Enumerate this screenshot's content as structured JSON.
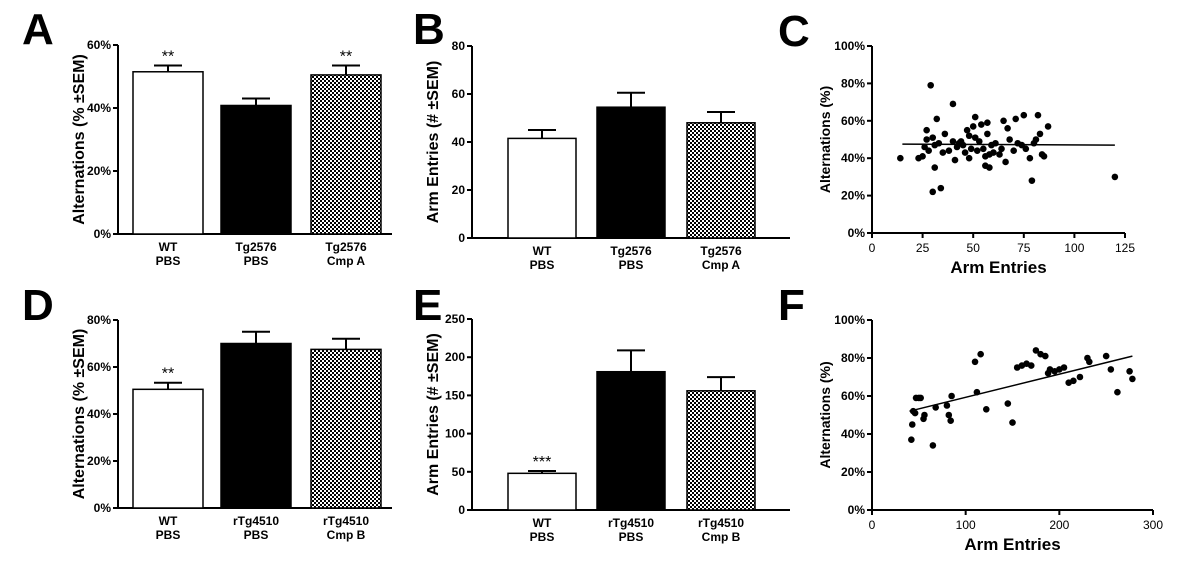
{
  "colors": {
    "axis": "#000000",
    "bar_white": "#ffffff",
    "bar_black": "#000000",
    "hatch_dark": "#000000"
  },
  "chart_data": [
    {
      "panel": "A",
      "type": "bar",
      "ylabel": "Alternations (% ±SEM)",
      "ylim": [
        0,
        60
      ],
      "yticks": [
        0,
        20,
        40,
        60
      ],
      "ytick_labels": [
        "0%",
        "20%",
        "40%",
        "60%"
      ],
      "categories": [
        [
          "WT",
          "PBS"
        ],
        [
          "Tg2576",
          "PBS"
        ],
        [
          "Tg2576",
          "Cmp A"
        ]
      ],
      "values": [
        51.5,
        40.8,
        50.5
      ],
      "errors": [
        2.0,
        2.2,
        3.0
      ],
      "fills": [
        "white",
        "black",
        "hatch"
      ],
      "significance": [
        "**",
        "",
        "**"
      ]
    },
    {
      "panel": "B",
      "type": "bar",
      "ylabel": "Arm Entries (# ±SEM)",
      "ylim": [
        0,
        80
      ],
      "yticks": [
        0,
        20,
        40,
        60,
        80
      ],
      "ytick_labels": [
        "0",
        "20",
        "40",
        "60",
        "80"
      ],
      "categories": [
        [
          "WT",
          "PBS"
        ],
        [
          "Tg2576",
          "PBS"
        ],
        [
          "Tg2576",
          "Cmp A"
        ]
      ],
      "values": [
        41.5,
        54.5,
        48.0
      ],
      "errors": [
        3.5,
        6.0,
        4.5
      ],
      "fills": [
        "white",
        "black",
        "hatch"
      ],
      "significance": [
        "",
        "",
        ""
      ]
    },
    {
      "panel": "C",
      "type": "scatter",
      "xlabel": "Arm Entries",
      "ylabel": "Alternations (%)",
      "xlim": [
        0,
        125
      ],
      "xticks": [
        0,
        25,
        50,
        75,
        100,
        125
      ],
      "xtick_labels": [
        "0",
        "25",
        "50",
        "75",
        "100",
        "125"
      ],
      "ylim": [
        0,
        100
      ],
      "yticks": [
        0,
        20,
        40,
        60,
        80,
        100
      ],
      "ytick_labels": [
        "0%",
        "20%",
        "40%",
        "60%",
        "80%",
        "100%"
      ],
      "points": [
        [
          14,
          40
        ],
        [
          23,
          40
        ],
        [
          25,
          41
        ],
        [
          26,
          46
        ],
        [
          27,
          50
        ],
        [
          27,
          55
        ],
        [
          28,
          44
        ],
        [
          29,
          79
        ],
        [
          30,
          22
        ],
        [
          30,
          51
        ],
        [
          31,
          47
        ],
        [
          31,
          35
        ],
        [
          32,
          61
        ],
        [
          33,
          48
        ],
        [
          34,
          24
        ],
        [
          35,
          43
        ],
        [
          36,
          53
        ],
        [
          38,
          44
        ],
        [
          40,
          69
        ],
        [
          40,
          49
        ],
        [
          41,
          39
        ],
        [
          42,
          46
        ],
        [
          43,
          48
        ],
        [
          44,
          49
        ],
        [
          45,
          47
        ],
        [
          46,
          43
        ],
        [
          47,
          55
        ],
        [
          48,
          52
        ],
        [
          48,
          40
        ],
        [
          49,
          45
        ],
        [
          50,
          57
        ],
        [
          51,
          51
        ],
        [
          51,
          62
        ],
        [
          52,
          44
        ],
        [
          53,
          49
        ],
        [
          54,
          58
        ],
        [
          55,
          45
        ],
        [
          56,
          41
        ],
        [
          56,
          36
        ],
        [
          57,
          53
        ],
        [
          57,
          59
        ],
        [
          58,
          42
        ],
        [
          58,
          35
        ],
        [
          59,
          47
        ],
        [
          60,
          43
        ],
        [
          61,
          48
        ],
        [
          63,
          42
        ],
        [
          64,
          45
        ],
        [
          65,
          60
        ],
        [
          66,
          38
        ],
        [
          67,
          56
        ],
        [
          68,
          50
        ],
        [
          70,
          44
        ],
        [
          71,
          61
        ],
        [
          72,
          48
        ],
        [
          74,
          47
        ],
        [
          75,
          63
        ],
        [
          76,
          45
        ],
        [
          78,
          40
        ],
        [
          79,
          28
        ],
        [
          80,
          48
        ],
        [
          81,
          50
        ],
        [
          82,
          63
        ],
        [
          83,
          53
        ],
        [
          84,
          42
        ],
        [
          85,
          41
        ],
        [
          87,
          57
        ],
        [
          120,
          30
        ]
      ],
      "fit": {
        "x": [
          15,
          120
        ],
        "y": [
          47.5,
          47.0
        ]
      }
    },
    {
      "panel": "D",
      "type": "bar",
      "ylabel": "Alternations (% ±SEM)",
      "ylim": [
        0,
        80
      ],
      "yticks": [
        0,
        20,
        40,
        60,
        80
      ],
      "ytick_labels": [
        "0%",
        "20%",
        "40%",
        "60%",
        "80%"
      ],
      "categories": [
        [
          "WT",
          "PBS"
        ],
        [
          "rTg4510",
          "PBS"
        ],
        [
          "rTg4510",
          "Cmp B"
        ]
      ],
      "values": [
        50.5,
        70.0,
        67.5
      ],
      "errors": [
        2.8,
        5.0,
        4.5
      ],
      "fills": [
        "white",
        "black",
        "hatch"
      ],
      "significance": [
        "**",
        "",
        ""
      ]
    },
    {
      "panel": "E",
      "type": "bar",
      "ylabel": "Arm Entries (# ±SEM)",
      "ylim": [
        0,
        250
      ],
      "yticks": [
        0,
        50,
        100,
        150,
        200,
        250
      ],
      "ytick_labels": [
        "0",
        "50",
        "100",
        "150",
        "200",
        "250"
      ],
      "categories": [
        [
          "WT",
          "PBS"
        ],
        [
          "rTg4510",
          "PBS"
        ],
        [
          "rTg4510",
          "Cmp B"
        ]
      ],
      "values": [
        48,
        181,
        156
      ],
      "errors": [
        3,
        28,
        18
      ],
      "fills": [
        "white",
        "black",
        "hatch"
      ],
      "significance": [
        "***",
        "",
        ""
      ]
    },
    {
      "panel": "F",
      "type": "scatter",
      "xlabel": "Arm Entries",
      "ylabel": "Alternations (%)",
      "xlim": [
        0,
        300
      ],
      "xticks": [
        0,
        100,
        200,
        300
      ],
      "xtick_labels": [
        "0",
        "100",
        "200",
        "300"
      ],
      "ylim": [
        0,
        100
      ],
      "yticks": [
        0,
        20,
        40,
        60,
        80,
        100
      ],
      "ytick_labels": [
        "0%",
        "20%",
        "40%",
        "60%",
        "80%",
        "100%"
      ],
      "points": [
        [
          42,
          37
        ],
        [
          43,
          45
        ],
        [
          44,
          52
        ],
        [
          46,
          51
        ],
        [
          47,
          59
        ],
        [
          50,
          59
        ],
        [
          52,
          59
        ],
        [
          55,
          48
        ],
        [
          56,
          50
        ],
        [
          65,
          34
        ],
        [
          68,
          54
        ],
        [
          80,
          55
        ],
        [
          82,
          50
        ],
        [
          84,
          47
        ],
        [
          85,
          60
        ],
        [
          110,
          78
        ],
        [
          112,
          62
        ],
        [
          116,
          82
        ],
        [
          122,
          53
        ],
        [
          145,
          56
        ],
        [
          150,
          46
        ],
        [
          155,
          75
        ],
        [
          160,
          76
        ],
        [
          165,
          77
        ],
        [
          170,
          76
        ],
        [
          175,
          84
        ],
        [
          180,
          82
        ],
        [
          185,
          81
        ],
        [
          188,
          72
        ],
        [
          190,
          74
        ],
        [
          195,
          73
        ],
        [
          200,
          74
        ],
        [
          205,
          75
        ],
        [
          210,
          67
        ],
        [
          215,
          68
        ],
        [
          222,
          70
        ],
        [
          230,
          80
        ],
        [
          232,
          78
        ],
        [
          250,
          81
        ],
        [
          255,
          74
        ],
        [
          262,
          62
        ],
        [
          275,
          73
        ],
        [
          278,
          69
        ]
      ],
      "fit": {
        "x": [
          40,
          278
        ],
        "y": [
          52,
          81
        ]
      }
    }
  ],
  "panels": [
    "A",
    "B",
    "C",
    "D",
    "E",
    "F"
  ]
}
